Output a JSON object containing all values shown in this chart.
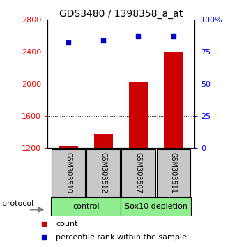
{
  "title": "GDS3480 / 1398358_a_at",
  "samples": [
    "GSM303510",
    "GSM303512",
    "GSM303507",
    "GSM303511"
  ],
  "counts": [
    1230,
    1380,
    2020,
    2400
  ],
  "percentile_ranks": [
    82,
    84,
    87,
    87
  ],
  "ylim_left": [
    1200,
    2800
  ],
  "ylim_right": [
    0,
    100
  ],
  "yticks_left": [
    1200,
    1600,
    2000,
    2400,
    2800
  ],
  "yticks_right": [
    0,
    25,
    50,
    75,
    100
  ],
  "bar_color": "#CC0000",
  "dot_color": "#0000CC",
  "bar_bottom": 1200,
  "bar_width": 0.55,
  "legend_count_label": "count",
  "legend_percentile_label": "percentile rank within the sample",
  "protocol_label": "protocol",
  "title_fontsize": 10,
  "tick_fontsize": 8,
  "sample_box_color": "#C8C8C8",
  "group_box_color": "#90EE90",
  "groups": [
    {
      "name": "control",
      "start": 0,
      "end": 2
    },
    {
      "name": "Sox10 depletion",
      "start": 2,
      "end": 4
    }
  ]
}
